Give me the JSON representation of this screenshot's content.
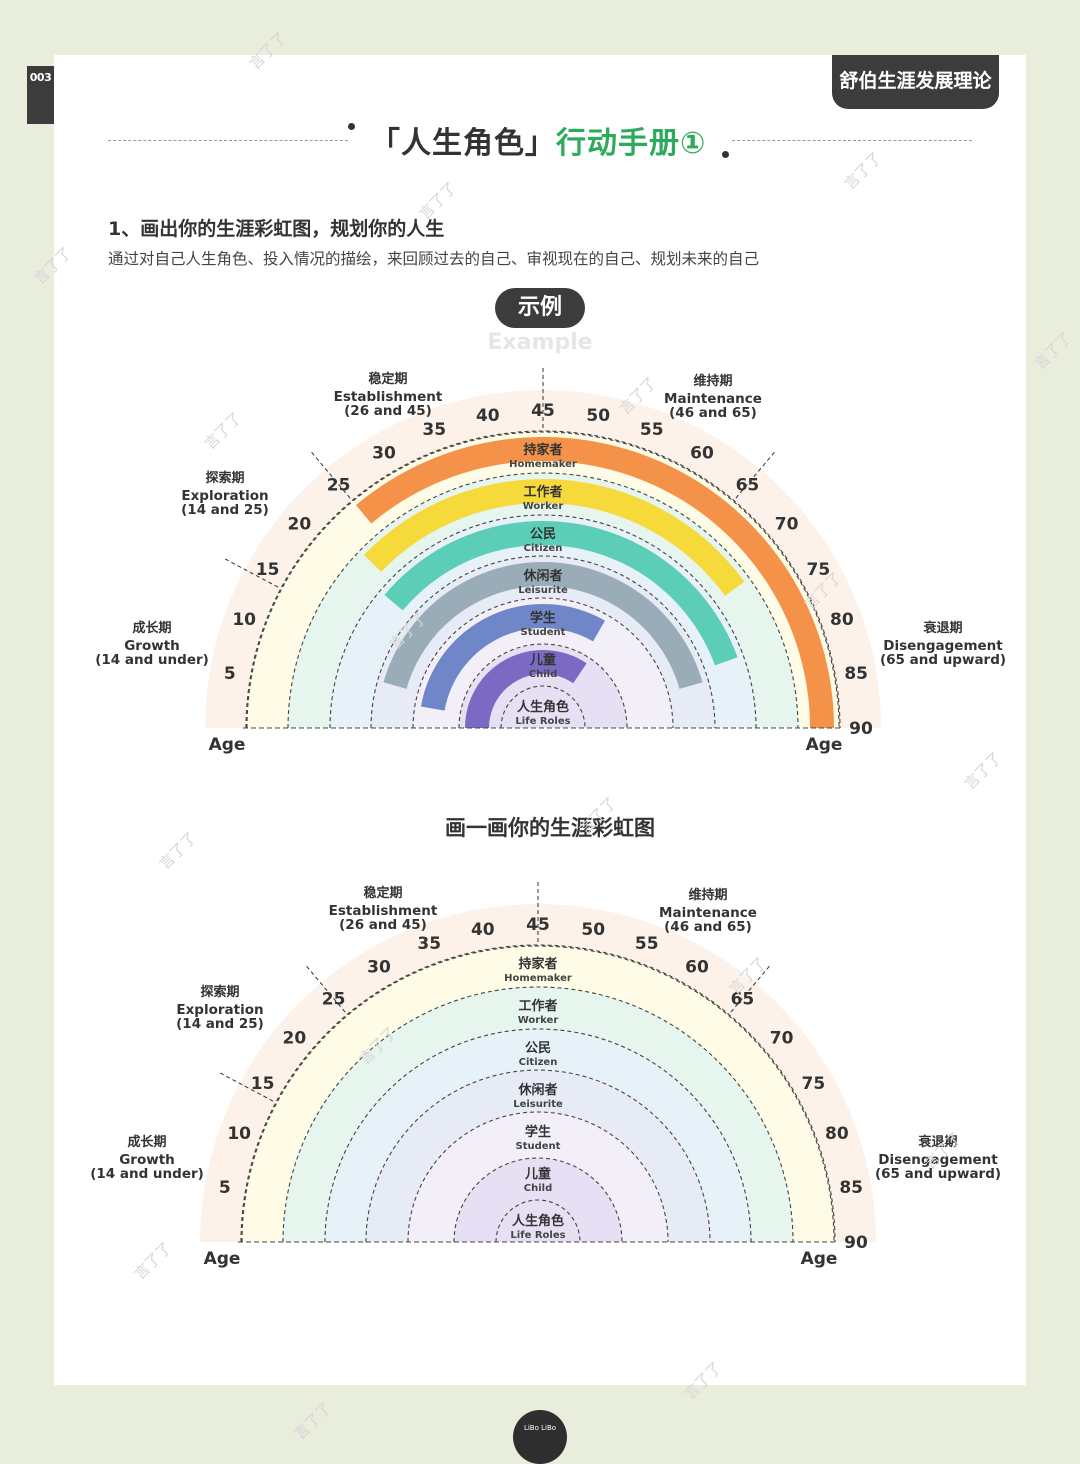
{
  "page_number": "003",
  "corner_tag": "舒伯生涯发展理论",
  "title": {
    "left": "「人生角色」",
    "right": "行动手册①"
  },
  "section": {
    "title": "1、画出你的生涯彩虹图，规划你的人生",
    "description": "通过对自己人生角色、投入情况的描绘，来回顾过去的自己、审视现在的自己、规划未来的自己"
  },
  "example_label": "示例",
  "example_en": "Example",
  "draw_title": "画一画你的生涯彩虹图",
  "watermark": "言了了",
  "logo_text": "LiBo LiBo",
  "colors": {
    "bands": [
      "#fdf2ea",
      "#fefbe6",
      "#e6f5ee",
      "#e6f2f8",
      "#e7ebf6",
      "#f3eff9",
      "#e7e0f4"
    ],
    "role_colors": [
      "#f4924a",
      "#f6d93a",
      "#5ccdb7",
      "#9aacb7",
      "#6f86c9",
      "#7b6ac4"
    ]
  },
  "diagram": {
    "ages": [
      "5",
      "10",
      "15",
      "20",
      "25",
      "30",
      "35",
      "40",
      "45",
      "50",
      "55",
      "60",
      "65",
      "70",
      "75",
      "80",
      "85",
      "90"
    ],
    "age_label": "Age",
    "stages": [
      {
        "zh": "成长期",
        "en": "Growth",
        "range": "(14 and under)"
      },
      {
        "zh": "探索期",
        "en": "Exploration",
        "range": "(14 and 25)"
      },
      {
        "zh": "稳定期",
        "en": "Establishment",
        "range": "(26 and 45)"
      },
      {
        "zh": "维持期",
        "en": "Maintenance",
        "range": "(46 and 65)"
      },
      {
        "zh": "衰退期",
        "en": "Disengagement",
        "range": "(65 and upward)"
      }
    ],
    "roles": [
      {
        "zh": "持家者",
        "en": "Homemaker"
      },
      {
        "zh": "工作者",
        "en": "Worker"
      },
      {
        "zh": "公民",
        "en": "Citizen"
      },
      {
        "zh": "休闲者",
        "en": "Leisurite"
      },
      {
        "zh": "学生",
        "en": "Student"
      },
      {
        "zh": "儿童",
        "en": "Child"
      },
      {
        "zh": "人生角色",
        "en": "Life Roles"
      }
    ]
  },
  "example_involvement": [
    {
      "role": "Homemaker",
      "from_age": 25,
      "to_age": 90
    },
    {
      "role": "Worker",
      "from_age": 22,
      "to_age": 72
    },
    {
      "role": "Citizen",
      "from_age": 20,
      "to_age": 80
    },
    {
      "role": "Leisurite",
      "from_age": 8,
      "to_age": 82
    },
    {
      "role": "Student",
      "from_age": 5,
      "to_age": 60
    },
    {
      "role": "Child",
      "from_age": 0,
      "to_age": 62
    }
  ]
}
